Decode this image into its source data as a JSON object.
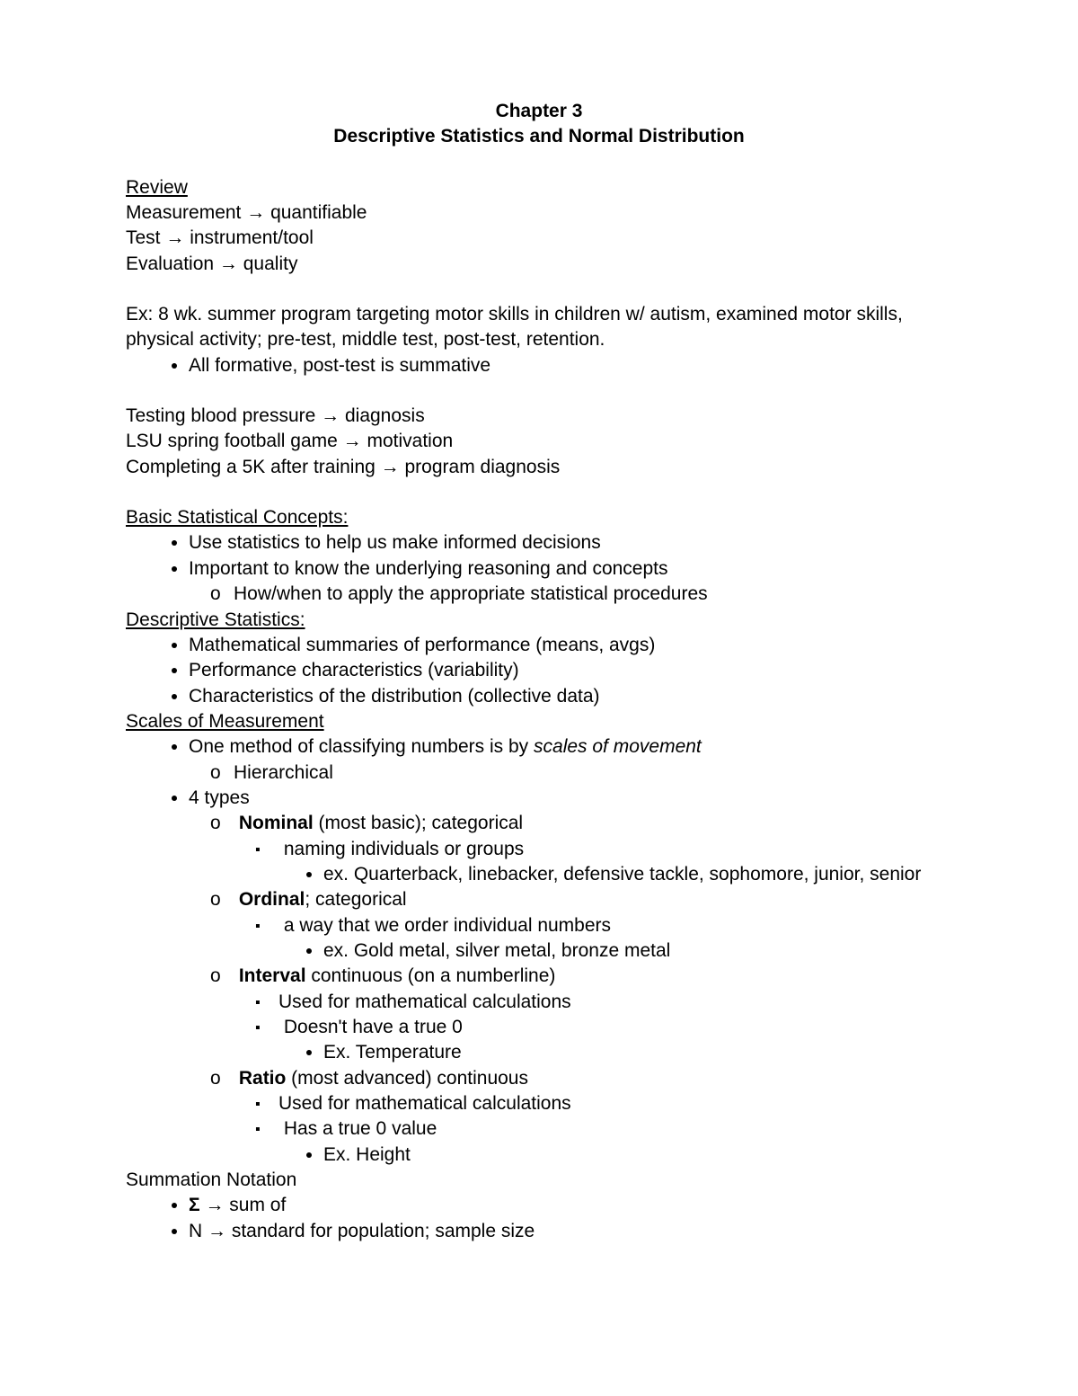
{
  "title_line1": "Chapter 3",
  "title_line2": "Descriptive Statistics and Normal Distribution",
  "review_heading": "Review",
  "review_l1_a": "Measurement ",
  "review_l1_b": " quantifiable",
  "review_l2_a": "Test ",
  "review_l2_b": " instrument/tool",
  "review_l3_a": "Evaluation ",
  "review_l3_b": " quality",
  "ex_para": "Ex: 8 wk. summer program targeting motor skills in children w/ autism, examined motor skills, physical activity; pre-test, middle test, post-test, retention.",
  "ex_bullet1": "All formative, post-test is summative",
  "tbp_a": "Testing blood pressure ",
  "tbp_b": " diagnosis",
  "lsu_a": "LSU spring football game ",
  "lsu_b": " motivation",
  "c5k_a": "Completing a 5K after training ",
  "c5k_b": " program diagnosis",
  "basic_heading": "Basic Statistical Concepts:",
  "basic_b1": "Use statistics to help us make informed decisions",
  "basic_b2": "Important to know the underlying reasoning and concepts",
  "basic_b2_sub": "How/when to apply the appropriate statistical procedures",
  "desc_heading": "Descriptive Statistics:",
  "desc_b1": "Mathematical summaries of performance (means, avgs)",
  "desc_b2": "Performance characteristics (variability)",
  "desc_b3": "Characteristics of the distribution (collective data)",
  "scales_heading": "Scales of Measurement",
  "scales_b1_a": "One method of classifying numbers is by ",
  "scales_b1_b": "scales of movement",
  "scales_b1_sub": "Hierarchical",
  "scales_b2": "4 types",
  "nominal_bold": "Nominal",
  "nominal_rest": " (most basic); categorical",
  "nominal_sq1": "naming individuals or groups",
  "nominal_dot1": "ex. Quarterback, linebacker, defensive tackle, sophomore, junior, senior",
  "ordinal_bold": "Ordinal",
  "ordinal_rest": "; categorical",
  "ordinal_sq1": "a way that we order individual numbers",
  "ordinal_dot1": "ex. Gold metal, silver metal, bronze metal",
  "interval_bold": "Interval",
  "interval_rest": " continuous (on a numberline)",
  "interval_sq1": "Used for mathematical calculations",
  "interval_sq2": "Doesn't have a true 0",
  "interval_dot1": "Ex. Temperature",
  "ratio_bold": "Ratio",
  "ratio_rest": " (most advanced) continuous",
  "ratio_sq1": "Used for mathematical calculations",
  "ratio_sq2": "Has a true 0 value",
  "ratio_dot1": "Ex. Height",
  "summ_heading": "Summation Notation",
  "sigma_bold": "Σ ",
  "sigma_rest": " sum of",
  "n_a": "N ",
  "n_b": " standard for population; sample size",
  "arrow": "→"
}
